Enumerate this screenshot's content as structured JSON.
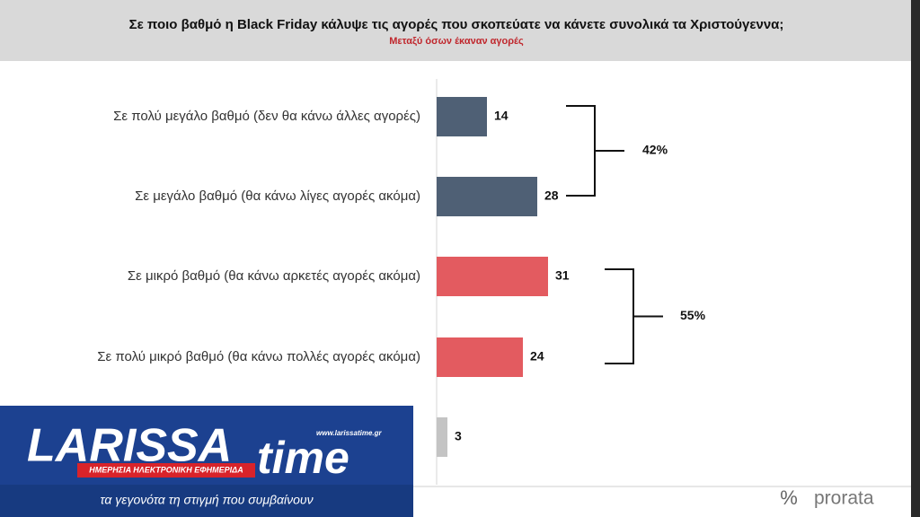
{
  "chart_data": {
    "type": "bar",
    "orientation": "horizontal",
    "title": "Σε ποιο βαθμό η Black Friday κάλυψε τις αγορές που σκοπεύατε να κάνετε συνολικά τα Χριστούγεννα;",
    "subtitle": "Μεταξύ όσων έκαναν αγορές",
    "categories": [
      "Σε πολύ μεγάλο βαθμό (δεν θα κάνω άλλες αγορές)",
      "Σε μεγάλο βαθμό (θα κάνω λίγες αγορές ακόμα)",
      "Σε μικρό βαθμό (θα κάνω αρκετές αγορές ακόμα)",
      "Σε πολύ μικρό βαθμό (θα κάνω πολλές αγορές ακόμα)",
      null
    ],
    "values": [
      14,
      28,
      31,
      24,
      3
    ],
    "colors": [
      "#4f6075",
      "#4f6075",
      "#e35b60",
      "#e35b60",
      "#c4c4c4"
    ],
    "brackets": {
      "values": [
        42,
        55
      ],
      "value_labels": [
        "42%",
        "55%"
      ]
    }
  },
  "overlay": {
    "brand": "LARISSA",
    "brand2": "time",
    "url": "www.larissatime.gr",
    "tagline": "ΗΜΕΡΗΣΙΑ ΗΛΕΚΤΡΟΝΙΚΗ ΕΦΗΜΕΡΙΔΑ",
    "slogan": "τα γεγονότα τη στιγμή που συμβαίνουν"
  },
  "footer": {
    "symbol": "%",
    "brand": "prorata"
  }
}
